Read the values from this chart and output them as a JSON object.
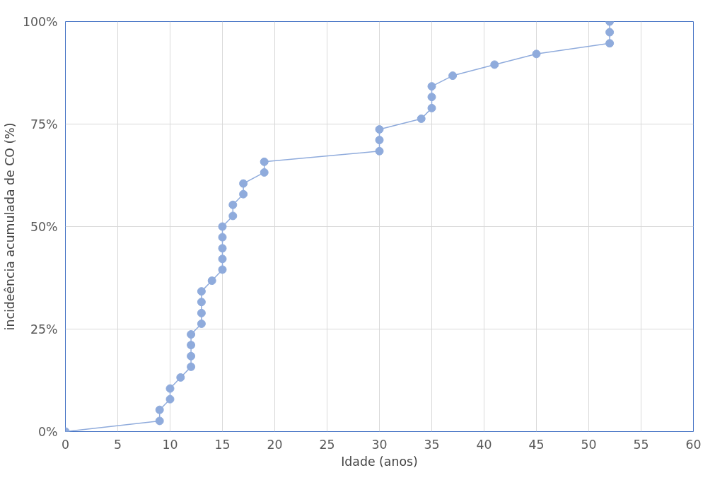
{
  "chart_data": {
    "type": "line",
    "xlabel": "Idade (anos)",
    "ylabel": "incideência acumulada de CO (%)",
    "x": [
      0,
      9,
      9,
      10,
      10,
      11,
      12,
      12,
      12,
      12,
      13,
      13,
      13,
      13,
      14,
      15,
      15,
      15,
      15,
      15,
      16,
      16,
      17,
      17,
      19,
      19,
      30,
      30,
      30,
      34,
      35,
      35,
      35,
      37,
      41,
      45,
      52,
      52,
      52
    ],
    "series": [
      {
        "color": "#8fabdc",
        "values": [
          0,
          2.6,
          5.3,
          7.9,
          10.5,
          13.2,
          15.8,
          18.4,
          21.1,
          23.7,
          26.3,
          28.9,
          31.6,
          34.2,
          36.8,
          39.5,
          42.1,
          44.7,
          47.4,
          50,
          52.6,
          55.3,
          57.9,
          60.5,
          63.2,
          65.8,
          68.4,
          71.1,
          73.7,
          76.3,
          78.9,
          81.6,
          84.2,
          86.8,
          89.5,
          92.1,
          94.7,
          97.4,
          100
        ]
      }
    ],
    "xlim": [
      0,
      60
    ],
    "xticks": [
      0,
      5,
      10,
      15,
      20,
      25,
      30,
      35,
      40,
      45,
      50,
      55,
      60
    ],
    "ylim": [
      0,
      100
    ],
    "yticks": [
      {
        "value": 0,
        "label": "0%"
      },
      {
        "value": 25,
        "label": "25%"
      },
      {
        "value": 50,
        "label": "50%"
      },
      {
        "value": 75,
        "label": "75%"
      },
      {
        "value": 100,
        "label": "100%"
      }
    ],
    "grid": true,
    "marker": "circle",
    "line_style": "solid"
  }
}
